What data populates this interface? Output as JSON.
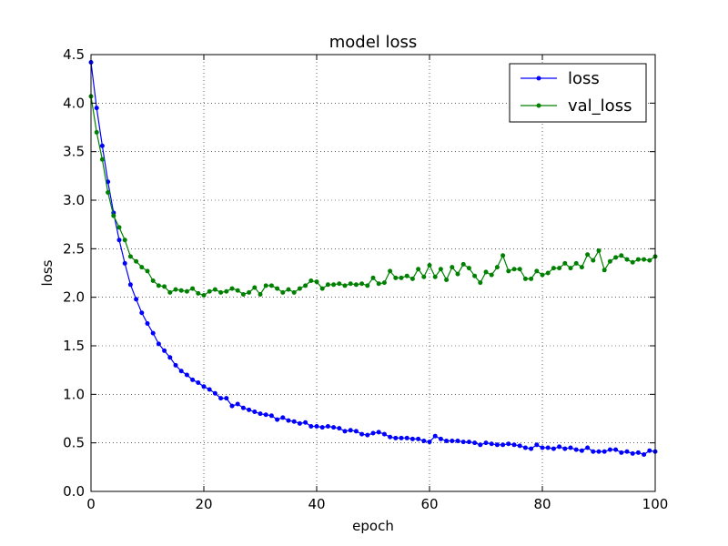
{
  "chart_data": {
    "type": "line",
    "title": "model loss",
    "xlabel": "epoch",
    "ylabel": "loss",
    "xlim": [
      0,
      100
    ],
    "ylim": [
      0.0,
      4.5
    ],
    "xticks": [
      0,
      20,
      40,
      60,
      80,
      100
    ],
    "xtick_labels": [
      "0",
      "20",
      "40",
      "60",
      "80",
      "100"
    ],
    "yticks": [
      0.0,
      0.5,
      1.0,
      1.5,
      2.0,
      2.5,
      3.0,
      3.5,
      4.0,
      4.5
    ],
    "ytick_labels": [
      "0.0",
      "0.5",
      "1.0",
      "1.5",
      "2.0",
      "2.5",
      "3.0",
      "3.5",
      "4.0",
      "4.5"
    ],
    "grid": true,
    "legend_position": "top-right",
    "series": [
      {
        "name": "loss",
        "color": "#0000ff",
        "values": [
          4.42,
          3.95,
          3.56,
          3.19,
          2.87,
          2.59,
          2.35,
          2.13,
          1.98,
          1.84,
          1.73,
          1.63,
          1.52,
          1.45,
          1.38,
          1.3,
          1.24,
          1.2,
          1.15,
          1.12,
          1.08,
          1.05,
          1.01,
          0.96,
          0.96,
          0.88,
          0.9,
          0.86,
          0.84,
          0.82,
          0.8,
          0.79,
          0.78,
          0.74,
          0.76,
          0.73,
          0.72,
          0.7,
          0.71,
          0.67,
          0.67,
          0.66,
          0.67,
          0.66,
          0.65,
          0.62,
          0.63,
          0.62,
          0.59,
          0.58,
          0.6,
          0.61,
          0.59,
          0.56,
          0.55,
          0.55,
          0.55,
          0.54,
          0.54,
          0.52,
          0.51,
          0.57,
          0.54,
          0.52,
          0.52,
          0.52,
          0.51,
          0.51,
          0.5,
          0.48,
          0.5,
          0.49,
          0.48,
          0.48,
          0.49,
          0.48,
          0.47,
          0.45,
          0.44,
          0.48,
          0.45,
          0.45,
          0.44,
          0.46,
          0.44,
          0.45,
          0.43,
          0.42,
          0.45,
          0.41,
          0.41,
          0.41,
          0.43,
          0.43,
          0.4,
          0.41,
          0.39,
          0.4,
          0.38,
          0.42,
          0.41
        ]
      },
      {
        "name": "val_loss",
        "color": "#008000",
        "values": [
          4.07,
          3.7,
          3.42,
          3.08,
          2.84,
          2.72,
          2.59,
          2.42,
          2.37,
          2.31,
          2.27,
          2.17,
          2.12,
          2.11,
          2.05,
          2.08,
          2.07,
          2.06,
          2.09,
          2.04,
          2.02,
          2.06,
          2.08,
          2.05,
          2.06,
          2.09,
          2.07,
          2.03,
          2.05,
          2.1,
          2.03,
          2.12,
          2.12,
          2.09,
          2.05,
          2.08,
          2.05,
          2.09,
          2.12,
          2.17,
          2.16,
          2.09,
          2.13,
          2.13,
          2.14,
          2.12,
          2.14,
          2.13,
          2.14,
          2.12,
          2.2,
          2.14,
          2.15,
          2.27,
          2.2,
          2.2,
          2.22,
          2.19,
          2.29,
          2.21,
          2.33,
          2.21,
          2.29,
          2.18,
          2.31,
          2.24,
          2.34,
          2.3,
          2.22,
          2.15,
          2.26,
          2.23,
          2.31,
          2.43,
          2.27,
          2.29,
          2.29,
          2.19,
          2.19,
          2.27,
          2.23,
          2.25,
          2.3,
          2.3,
          2.35,
          2.3,
          2.35,
          2.31,
          2.44,
          2.38,
          2.48,
          2.28,
          2.37,
          2.41,
          2.43,
          2.39,
          2.36,
          2.39,
          2.39,
          2.38,
          2.42
        ]
      }
    ]
  }
}
